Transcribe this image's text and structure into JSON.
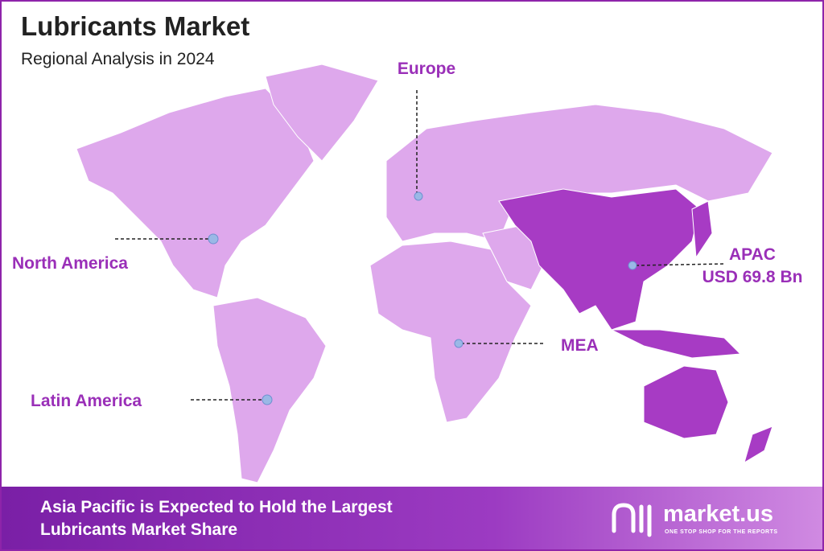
{
  "header": {
    "title": "Lubricants Market",
    "subtitle": "Regional Analysis in 2024"
  },
  "regions": [
    {
      "label": "Europe"
    },
    {
      "label": "North America"
    },
    {
      "label": "APAC",
      "value": "USD 69.8 Bn"
    },
    {
      "label": "MEA"
    },
    {
      "label": "Latin America"
    }
  ],
  "footer": {
    "text_lines": [
      "Asia Pacific is Expected to Hold the Largest",
      "Lubricants Market Share"
    ],
    "brand": "market.us",
    "tagline": "ONE STOP SHOP FOR THE REPORTS"
  }
}
